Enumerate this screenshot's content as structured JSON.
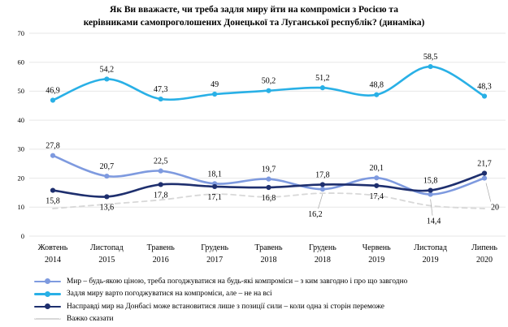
{
  "title_lines": [
    "Як Ви вважаєте, чи треба задля миру йти на компроміси з Росією та",
    "керівниками самопроголошених Донецької та Луганської республік? (динаміка)"
  ],
  "colors": {
    "peace_any_price": "#7E9ADF",
    "compromises_not_all": "#29B0E6",
    "position_of_strength": "#1E2F6E",
    "hard_to_say": "#D8D8D8",
    "grid": "#E7E7E7",
    "text": "#000000",
    "leader": "#A6A6A6"
  },
  "chart_data": {
    "type": "line",
    "smooth": true,
    "grid": true,
    "legend_position": "bottom-left",
    "ylim": [
      0,
      70
    ],
    "ytick_step": 10,
    "yticks": [
      0,
      10,
      20,
      30,
      40,
      50,
      60,
      70
    ],
    "categories": [
      {
        "month": "Жовтень",
        "year": "2014"
      },
      {
        "month": "Листопад",
        "year": "2015"
      },
      {
        "month": "Травень",
        "year": "2016"
      },
      {
        "month": "Грудень",
        "year": "2017"
      },
      {
        "month": "Травень",
        "year": "2018"
      },
      {
        "month": "Грудень",
        "year": "2018"
      },
      {
        "month": "Червень",
        "year": "2019"
      },
      {
        "month": "Листопад",
        "year": "2019"
      },
      {
        "month": "Липень",
        "year": "2020"
      }
    ],
    "series": [
      {
        "name": "Мир – будь-якою ціною, треба погоджуватися на будь-які компроміси – з ким завгодно і про що завгодно",
        "values": [
          27.8,
          20.7,
          22.5,
          18.1,
          19.7,
          16.2,
          20.1,
          14.4,
          20
        ],
        "color_key": "peace_any_price",
        "style": "solid",
        "markers": true,
        "labels_visible": true,
        "label_side": [
          "above",
          "above",
          "above",
          "above",
          "above",
          "below-leader",
          "above",
          "below-leader-c",
          "right-leader"
        ]
      },
      {
        "name": "Задля миру варто погоджуватися на компроміси, але – не на всі",
        "values": [
          46.9,
          54.2,
          47.3,
          49,
          50.2,
          51.2,
          48.8,
          58.5,
          48.3
        ],
        "color_key": "compromises_not_all",
        "style": "solid",
        "markers": true,
        "labels_visible": true,
        "label_side": [
          "above",
          "above",
          "above",
          "above",
          "above",
          "above",
          "above",
          "above",
          "above"
        ]
      },
      {
        "name": "Насправді мир на Донбасі може встановитися лише з позиції сили – коли одна зі сторін переможе",
        "values": [
          15.8,
          13.6,
          17.8,
          17.1,
          16.8,
          17.8,
          17.4,
          15.8,
          21.7
        ],
        "color_key": "position_of_strength",
        "style": "solid",
        "markers": true,
        "labels_visible": true,
        "label_side": [
          "below",
          "below",
          "below",
          "below",
          "below",
          "above",
          "below",
          "above",
          "above"
        ]
      },
      {
        "name": "Важко сказати",
        "values": [
          9.5,
          11,
          12.5,
          14.5,
          13.5,
          14.8,
          14,
          10.5,
          9.5
        ],
        "color_key": "hard_to_say",
        "style": "dashed",
        "markers": false,
        "labels_visible": false,
        "label_side": []
      }
    ]
  }
}
